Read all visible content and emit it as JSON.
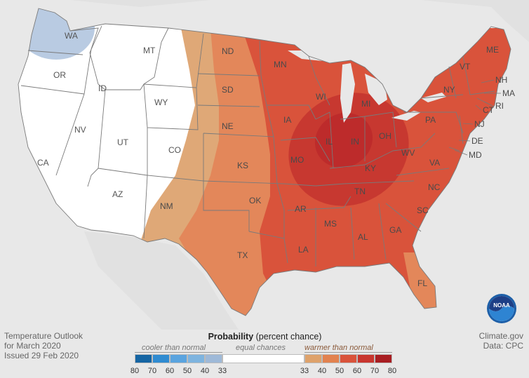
{
  "map": {
    "state_labels": [
      {
        "abbr": "WA"
      },
      {
        "abbr": "OR"
      },
      {
        "abbr": "CA"
      },
      {
        "abbr": "ID"
      },
      {
        "abbr": "NV"
      },
      {
        "abbr": "MT"
      },
      {
        "abbr": "WY"
      },
      {
        "abbr": "UT"
      },
      {
        "abbr": "AZ"
      },
      {
        "abbr": "CO"
      },
      {
        "abbr": "NM"
      },
      {
        "abbr": "ND"
      },
      {
        "abbr": "SD"
      },
      {
        "abbr": "NE"
      },
      {
        "abbr": "KS"
      },
      {
        "abbr": "OK"
      },
      {
        "abbr": "TX"
      },
      {
        "abbr": "MN"
      },
      {
        "abbr": "IA"
      },
      {
        "abbr": "MO"
      },
      {
        "abbr": "AR"
      },
      {
        "abbr": "LA"
      },
      {
        "abbr": "WI"
      },
      {
        "abbr": "IL"
      },
      {
        "abbr": "MI"
      },
      {
        "abbr": "IN"
      },
      {
        "abbr": "OH"
      },
      {
        "abbr": "KY"
      },
      {
        "abbr": "TN"
      },
      {
        "abbr": "MS"
      },
      {
        "abbr": "AL"
      },
      {
        "abbr": "GA"
      },
      {
        "abbr": "FL"
      },
      {
        "abbr": "SC"
      },
      {
        "abbr": "NC"
      },
      {
        "abbr": "VA"
      },
      {
        "abbr": "WV"
      },
      {
        "abbr": "PA"
      },
      {
        "abbr": "NY"
      },
      {
        "abbr": "VT"
      },
      {
        "abbr": "NH"
      },
      {
        "abbr": "ME"
      },
      {
        "abbr": "MA"
      },
      {
        "abbr": "RI"
      },
      {
        "abbr": "CT"
      },
      {
        "abbr": "NJ"
      },
      {
        "abbr": "DE"
      },
      {
        "abbr": "MD"
      }
    ],
    "colors": {
      "background": "#e8e8e8",
      "land": "#dedede",
      "equal_chances": "#ffffff",
      "cooler_33": "#b9cbe2",
      "warmer_33": "#dfa877",
      "warmer_40": "#e3875a",
      "warmer_50": "#d9533b",
      "warmer_60": "#cc3330",
      "warmer_70": "#b62026"
    }
  },
  "footer": {
    "line1": "Temperature Outlook",
    "line2": "for March 2020",
    "line3": "Issued 29 Feb 2020",
    "source1": "Climate.gov",
    "source2": "Data: CPC"
  },
  "legend": {
    "title_bold": "Probability",
    "title_rest": " (percent chance)",
    "cooler_label": "cooler than normal",
    "equal_label": "equal chances",
    "warmer_label": "warmer than normal",
    "cool_ticks": [
      "80",
      "70",
      "60",
      "50",
      "40",
      "33"
    ],
    "warm_ticks": [
      "33",
      "40",
      "50",
      "60",
      "70",
      "80"
    ],
    "cool_colors": [
      "#1565a3",
      "#2f8bd1",
      "#5aa4df",
      "#7eb4df",
      "#9eb9d8"
    ],
    "warm_colors": [
      "#dea26b",
      "#e2824f",
      "#d9533b",
      "#c8362f",
      "#a81e22"
    ],
    "equal_color": "#ffffff"
  },
  "logo": {
    "text": "NOAA"
  }
}
